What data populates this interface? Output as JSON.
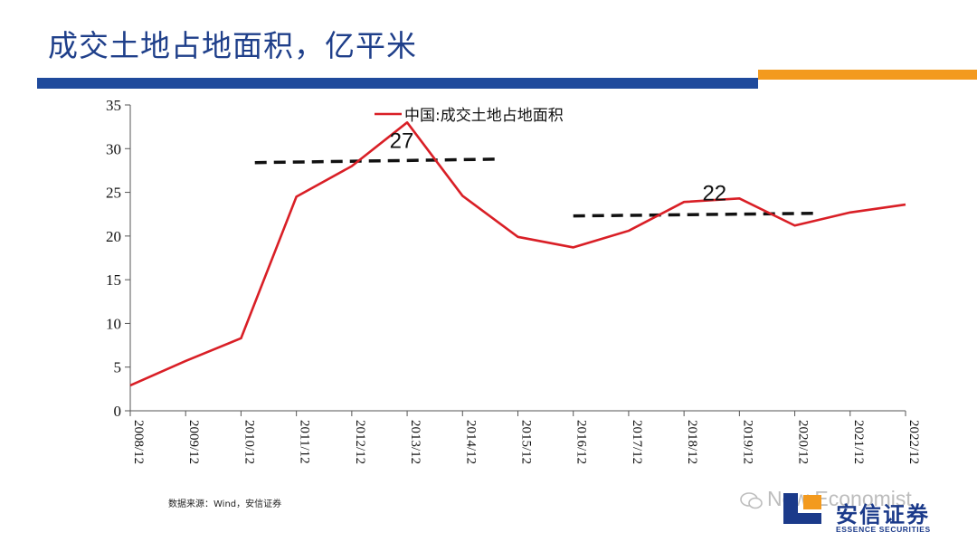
{
  "title": "成交土地占地面积，亿平米",
  "colors": {
    "title": "#1f3f8a",
    "bar_blue": "#1f4a9c",
    "bar_orange": "#f39a1e",
    "line": "#d91f26",
    "trend": "#111111"
  },
  "source": "数据来源：Wind，安信证券",
  "watermark": "New Economist",
  "logo": {
    "cn": "安信证券",
    "en": "ESSENCE SECURITIES"
  },
  "chart_data": {
    "type": "line",
    "title": "",
    "xlabel": "",
    "ylabel": "",
    "ylim": [
      0,
      35
    ],
    "yticks": [
      0,
      5,
      10,
      15,
      20,
      25,
      30,
      35
    ],
    "categories": [
      "2008/12",
      "2009/12",
      "2010/12",
      "2011/12",
      "2012/12",
      "2013/12",
      "2014/12",
      "2015/12",
      "2016/12",
      "2017/12",
      "2018/12",
      "2019/12",
      "2020/12",
      "2021/12",
      "2022/12"
    ],
    "series": [
      {
        "name": "中国:成交土地占地面积",
        "values": [
          2.9,
          5.7,
          8.3,
          24.5,
          28.0,
          33.0,
          24.6,
          19.9,
          18.7,
          20.6,
          23.9,
          24.3,
          21.2,
          22.7,
          23.6
        ]
      }
    ],
    "legend_position": "top-center",
    "grid": false,
    "trend_lines": [
      {
        "x_start": 2.25,
        "x_end": 6.65,
        "y_start": 28.4,
        "y_end": 28.8
      },
      {
        "x_start": 8.0,
        "x_end": 12.35,
        "y_start": 22.3,
        "y_end": 22.6
      }
    ],
    "annotations": [
      {
        "text": "27",
        "x": 4.9,
        "y": 30.9
      },
      {
        "text": "22",
        "x": 10.55,
        "y": 24.9
      }
    ]
  }
}
